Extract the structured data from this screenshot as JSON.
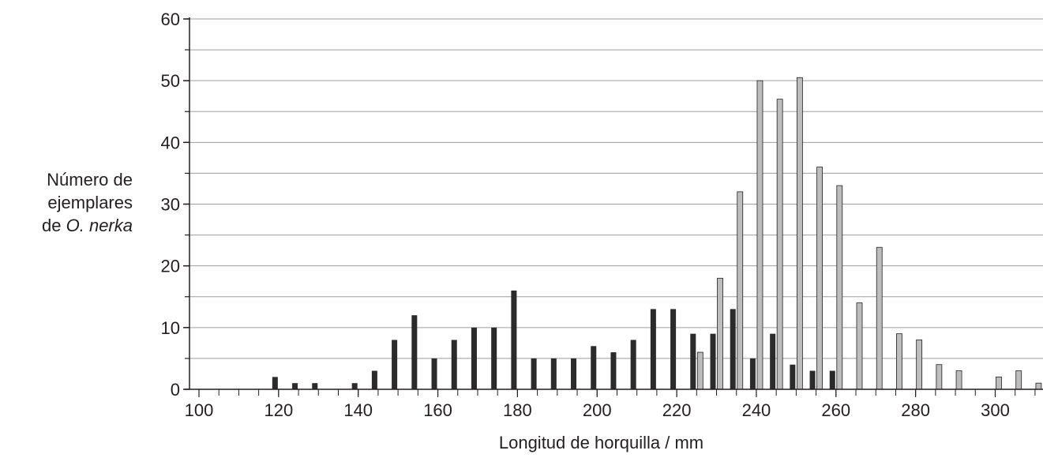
{
  "chart_data": {
    "type": "bar",
    "ylabel": {
      "line1": "Número de",
      "line2": "ejemplares",
      "line3_prefix": "de ",
      "line3_italic": "O. nerka"
    },
    "xlabel": "Longitud de horquilla / mm",
    "xlim": [
      100,
      312
    ],
    "ylim": [
      0,
      60
    ],
    "x_ticks": [
      "100",
      "120",
      "140",
      "160",
      "180",
      "200",
      "220",
      "240",
      "260",
      "280",
      "300"
    ],
    "y_ticks": [
      "0",
      "10",
      "20",
      "30",
      "40",
      "50",
      "60"
    ],
    "grid": true,
    "series": [
      {
        "color": "#2b2b2b",
        "x": [
          120,
          125,
          130,
          135,
          140,
          145,
          150,
          155,
          160,
          165,
          170,
          175,
          180,
          185,
          190,
          195,
          200,
          205,
          210,
          215,
          220,
          225,
          230,
          235,
          240,
          245,
          250,
          255,
          260
        ],
        "values": [
          2,
          1,
          1,
          0,
          1,
          3,
          8,
          12,
          5,
          8,
          10,
          10,
          16,
          5,
          5,
          5,
          7,
          6,
          8,
          13,
          13,
          9,
          9,
          13,
          5,
          9,
          4,
          3,
          3
        ]
      },
      {
        "color": "#bdbdbd",
        "x": [
          225,
          230,
          235,
          240,
          245,
          250,
          255,
          260,
          265,
          270,
          275,
          280,
          285,
          290,
          295,
          300,
          305,
          310
        ],
        "values": [
          6,
          18,
          32,
          50,
          47,
          50.5,
          36,
          33,
          14,
          23,
          9,
          8,
          4,
          3,
          0,
          2,
          3,
          1
        ]
      }
    ]
  }
}
